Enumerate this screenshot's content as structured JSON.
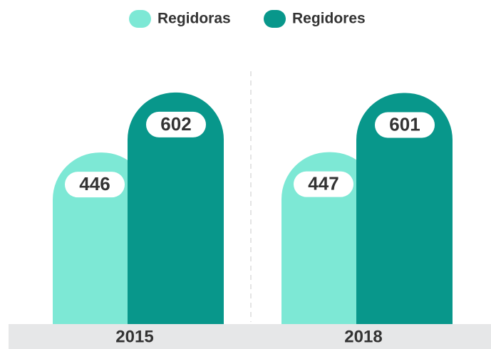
{
  "chart_data": {
    "type": "bar",
    "categories": [
      "2015",
      "2018"
    ],
    "series": [
      {
        "name": "Regidoras",
        "color": "#7de8d5",
        "values": [
          446,
          447
        ]
      },
      {
        "name": "Regidores",
        "color": "#08978b",
        "values": [
          602,
          601
        ]
      }
    ]
  }
}
